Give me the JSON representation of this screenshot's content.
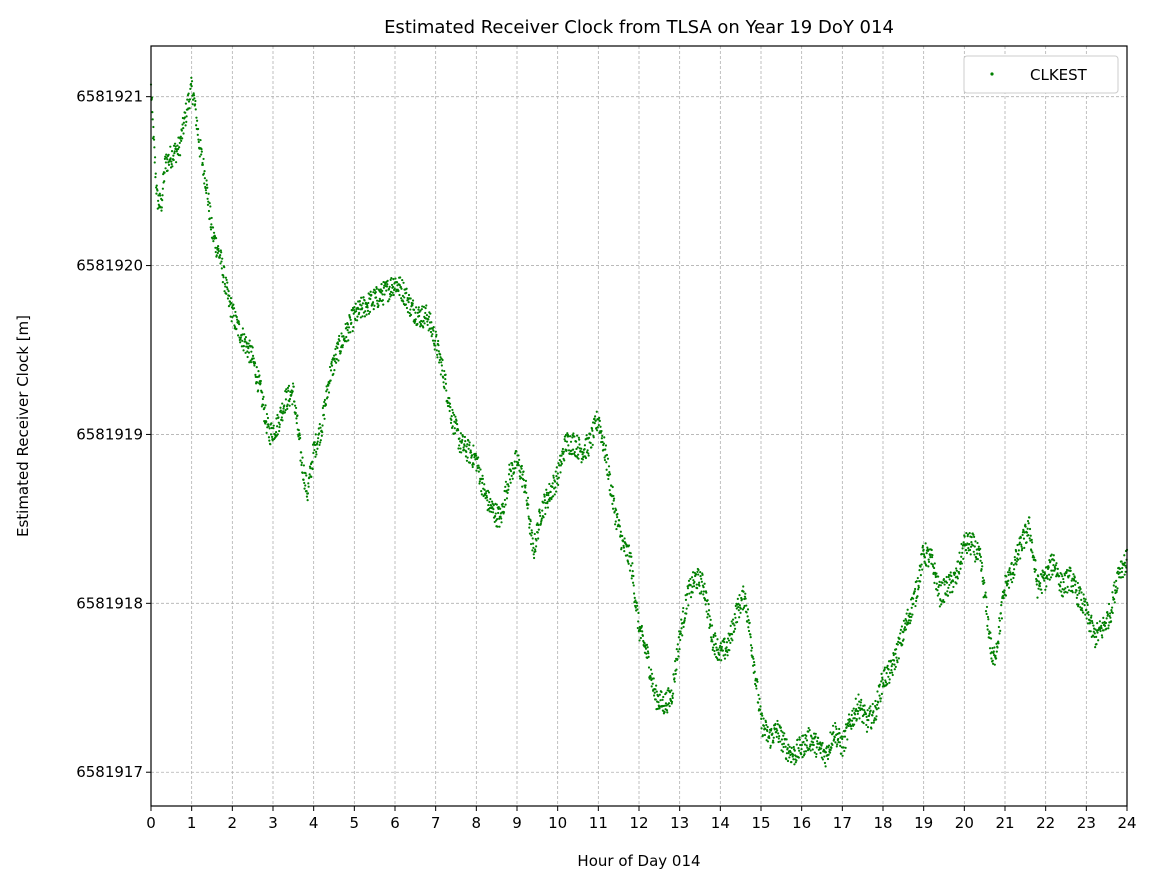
{
  "chart_data": {
    "type": "scatter",
    "title": "Estimated Receiver Clock from TLSA on Year 19 DoY 014",
    "xlabel": "Hour of Day 014",
    "ylabel": "Estimated Receiver Clock [m]",
    "xlim": [
      0,
      24
    ],
    "ylim": [
      6581916.8,
      6581921.3
    ],
    "xticks": [
      0,
      1,
      2,
      3,
      4,
      5,
      6,
      7,
      8,
      9,
      10,
      11,
      12,
      13,
      14,
      15,
      16,
      17,
      18,
      19,
      20,
      21,
      22,
      23,
      24
    ],
    "yticks": [
      6581917,
      6581918,
      6581919,
      6581920,
      6581921
    ],
    "grid": true,
    "legend": {
      "placement": "top-right",
      "entries": [
        "CLKEST"
      ]
    },
    "series": [
      {
        "name": "CLKEST",
        "color": "#008000",
        "marker": "point",
        "trace_x": [
          0,
          0.05,
          0.15,
          0.25,
          0.35,
          0.5,
          0.7,
          0.9,
          1.0,
          1.05,
          1.2,
          1.35,
          1.5,
          1.7,
          1.9,
          2.1,
          2.3,
          2.5,
          2.7,
          2.9,
          3.1,
          3.3,
          3.5,
          3.7,
          3.85,
          4.0,
          4.2,
          4.4,
          4.6,
          4.8,
          5.0,
          5.2,
          5.5,
          5.8,
          6.0,
          6.2,
          6.4,
          6.6,
          6.8,
          7.0,
          7.2,
          7.4,
          7.6,
          7.8,
          8.0,
          8.2,
          8.4,
          8.6,
          8.8,
          9.0,
          9.2,
          9.4,
          9.6,
          9.8,
          10.0,
          10.2,
          10.4,
          10.6,
          10.8,
          11.0,
          11.2,
          11.4,
          11.6,
          11.8,
          12.0,
          12.2,
          12.4,
          12.6,
          12.8,
          13.0,
          13.2,
          13.4,
          13.6,
          13.8,
          14.0,
          14.2,
          14.4,
          14.6,
          14.8,
          15.0,
          15.2,
          15.4,
          15.6,
          15.8,
          16.0,
          16.2,
          16.4,
          16.6,
          16.8,
          17.0,
          17.2,
          17.4,
          17.6,
          17.8,
          18.0,
          18.2,
          18.4,
          18.6,
          18.8,
          19.0,
          19.2,
          19.4,
          19.6,
          19.8,
          20.0,
          20.2,
          20.4,
          20.6,
          20.7,
          20.8,
          21.0,
          21.2,
          21.4,
          21.6,
          21.8,
          22.0,
          22.2,
          22.4,
          22.6,
          22.8,
          23.0,
          23.2,
          23.4,
          23.6,
          23.8,
          24.0
        ],
        "trace_y": [
          6581921.05,
          6581920.8,
          6581920.4,
          6581920.35,
          6581920.6,
          6581920.65,
          6581920.7,
          6581920.95,
          6581921.05,
          6581921.0,
          6581920.7,
          6581920.5,
          6581920.2,
          6581920.05,
          6581919.8,
          6581919.65,
          6581919.55,
          6581919.45,
          6581919.25,
          6581919.0,
          6581919.05,
          6581919.2,
          6581919.25,
          6581918.85,
          6581918.65,
          6581918.9,
          6581919.05,
          6581919.35,
          6581919.5,
          6581919.6,
          6581919.7,
          6581919.75,
          6581919.8,
          6581919.85,
          6581919.9,
          6581919.85,
          6581919.75,
          6581919.7,
          6581919.7,
          6581919.55,
          6581919.35,
          6581919.1,
          6581918.95,
          6581918.9,
          6581918.85,
          6581918.65,
          6581918.55,
          6581918.5,
          6581918.75,
          6581918.85,
          6581918.7,
          6581918.3,
          6581918.55,
          6581918.65,
          6581918.75,
          6581918.95,
          6581918.95,
          6581918.9,
          6581918.95,
          6581919.1,
          6581918.85,
          6581918.55,
          6581918.35,
          6581918.25,
          6581917.85,
          6581917.7,
          6581917.45,
          6581917.4,
          6581917.45,
          6581917.8,
          6581918.05,
          6581918.15,
          6581918.1,
          6581917.8,
          6581917.7,
          6581917.75,
          6581917.95,
          6581918.05,
          6581917.7,
          6581917.3,
          6581917.2,
          6581917.25,
          6581917.15,
          6581917.1,
          6581917.15,
          6581917.2,
          6581917.15,
          6581917.1,
          6581917.25,
          6581917.15,
          6581917.3,
          6581917.4,
          6581917.3,
          6581917.35,
          6581917.55,
          6581917.6,
          6581917.75,
          6581917.9,
          6581918.05,
          6581918.3,
          6581918.25,
          6581918.05,
          6581918.1,
          6581918.15,
          6581918.35,
          6581918.35,
          6581918.25,
          6581917.85,
          6581917.65,
          6581917.75,
          6581918.1,
          6581918.2,
          6581918.35,
          6581918.45,
          6581918.1,
          6581918.15,
          6581918.25,
          6581918.1,
          6581918.15,
          6581918.05,
          6581917.95,
          6581917.8,
          6581917.85,
          6581917.95,
          6581918.2,
          6581918.25
        ]
      }
    ]
  }
}
